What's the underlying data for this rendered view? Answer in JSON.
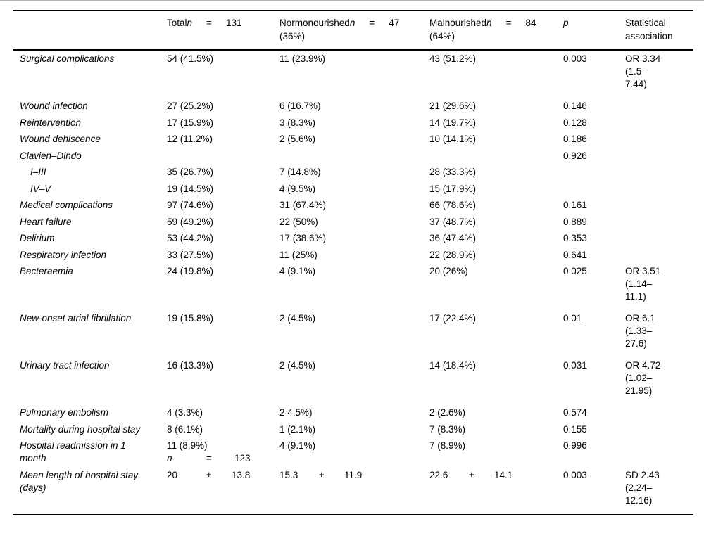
{
  "table": {
    "header": {
      "col_label": "",
      "col_total": {
        "prefix": "Total",
        "n": "n",
        "eq": "=",
        "count": "131",
        "sub": ""
      },
      "col_normo": {
        "prefix": "Normonourished",
        "n": "n",
        "eq": "=",
        "count": "47",
        "sub": "(36%)"
      },
      "col_malno": {
        "prefix": "Malnourished",
        "n": "n",
        "eq": "=",
        "count": "84",
        "sub": "(64%)"
      },
      "col_p": "p",
      "col_stat": "Statistical association"
    },
    "rows": [
      {
        "label": "Surgical complications",
        "total": "54 (41.5%)",
        "normo": "11 (23.9%)",
        "malno": "43 (51.2%)",
        "p": "0.003",
        "stat": [
          "OR 3.34",
          "(1.5–",
          "7.44)"
        ],
        "tall": true
      },
      {
        "label": "Wound infection",
        "total": "27 (25.2%)",
        "normo": "6 (16.7%)",
        "malno": "21 (29.6%)",
        "p": "0.146"
      },
      {
        "label": "Reintervention",
        "total": "17 (15.9%)",
        "normo": "3 (8.3%)",
        "malno": "14 (19.7%)",
        "p": "0.128"
      },
      {
        "label": "Wound dehiscence",
        "total": "12 (11.2%)",
        "normo": "2 (5.6%)",
        "malno": "10 (14.1%)",
        "p": "0.186"
      },
      {
        "label": "Clavien–Dindo",
        "p": "0.926"
      },
      {
        "label": "I–III",
        "indent": true,
        "total": "35 (26.7%)",
        "normo": "7 (14.8%)",
        "malno": "28 (33.3%)"
      },
      {
        "label": "IV–V",
        "indent": true,
        "total": "19 (14.5%)",
        "normo": "4 (9.5%)",
        "malno": "15 (17.9%)"
      },
      {
        "label": "Medical complications",
        "total": "97 (74.6%)",
        "normo": "31 (67.4%)",
        "malno": "66 (78.6%)",
        "p": "0.161"
      },
      {
        "label": "Heart failure",
        "total": "59 (49.2%)",
        "normo": "22 (50%)",
        "malno": "37 (48.7%)",
        "p": "0.889"
      },
      {
        "label": "Delirium",
        "total": "53 (44.2%)",
        "normo": "17 (38.6%)",
        "malno": "36 (47.4%)",
        "p": "0.353"
      },
      {
        "label": "Respiratory infection",
        "total": "33 (27.5%)",
        "normo": "11 (25%)",
        "malno": "22 (28.9%)",
        "p": "0.641"
      },
      {
        "label": "Bacteraemia",
        "total": "24 (19.8%)",
        "normo": "4 (9.1%)",
        "malno": "20 (26%)",
        "p": "0.025",
        "stat": [
          "OR 3.51",
          "(1.14–",
          "11.1)"
        ],
        "tall": true
      },
      {
        "label": "New-onset atrial fibrillation",
        "total": "19 (15.8%)",
        "normo": "2 (4.5%)",
        "malno": "17 (22.4%)",
        "p": "0.01",
        "stat": [
          "OR 6.1",
          "(1.33–",
          "27.6)"
        ],
        "tall": true
      },
      {
        "label": "Urinary tract infection",
        "total": "16 (13.3%)",
        "normo": "2 (4.5%)",
        "malno": "14 (18.4%)",
        "p": "0.031",
        "stat": [
          "OR 4.72",
          "(1.02–",
          "21.95)"
        ],
        "tall": true
      },
      {
        "label": "Pulmonary embolism",
        "total": "4 (3.3%)",
        "normo": "2 4.5%)",
        "malno": "2 (2.6%)",
        "p": "0.574"
      },
      {
        "label": "Mortality during hospital stay",
        "total": "8 (6.1%)",
        "normo": "1 (2.1%)",
        "malno": "7 (8.3%)",
        "p": "0.155"
      },
      {
        "label": "Hospital readmission in 1 month",
        "total": "11 (8.9%)",
        "total_sub": {
          "n": "n",
          "eq": "=",
          "value": "123"
        },
        "normo": "4 (9.1%)",
        "malno": "7 (8.9%)",
        "p": "0.996"
      },
      {
        "label": "Mean length of hospital stay (days)",
        "total": [
          "20",
          "±",
          "13.8"
        ],
        "normo": [
          "15.3",
          "±",
          "11.9"
        ],
        "malno": [
          "22.6",
          "±",
          "14.1"
        ],
        "p": "0.003",
        "stat": [
          "SD 2.43",
          "(2.24–",
          "12.16)"
        ],
        "tall": true
      }
    ]
  }
}
